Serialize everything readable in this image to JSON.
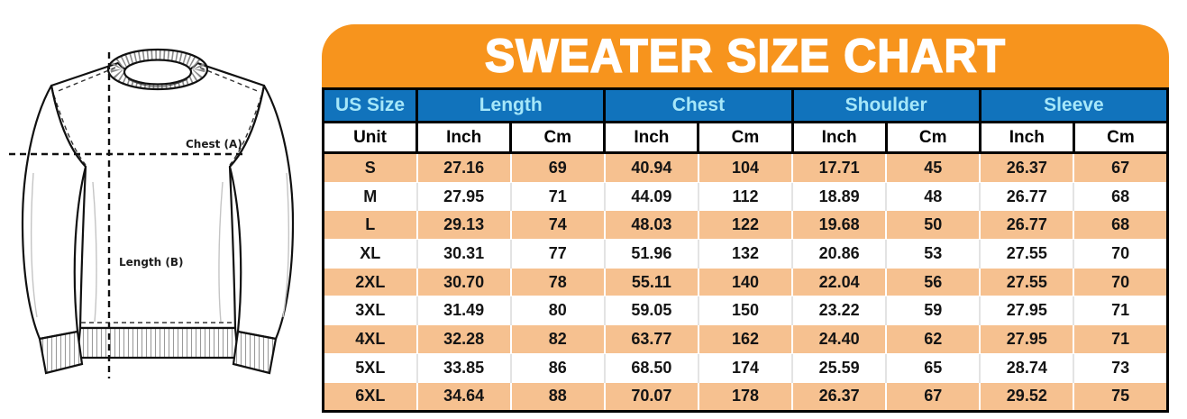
{
  "title": "SWEATER SIZE CHART",
  "diagram": {
    "chest_label": "Chest (A)",
    "length_label": "Length (B)"
  },
  "table": {
    "group_headers": [
      "US Size",
      "Length",
      "Chest",
      "Shoulder",
      "Sleeve"
    ],
    "unit_row": [
      "Unit",
      "Inch",
      "Cm",
      "Inch",
      "Cm",
      "Inch",
      "Cm",
      "Inch",
      "Cm"
    ],
    "rows": [
      {
        "size": "S",
        "values": [
          "27.16",
          "69",
          "40.94",
          "104",
          "17.71",
          "45",
          "26.37",
          "67"
        ]
      },
      {
        "size": "M",
        "values": [
          "27.95",
          "71",
          "44.09",
          "112",
          "18.89",
          "48",
          "26.77",
          "68"
        ]
      },
      {
        "size": "L",
        "values": [
          "29.13",
          "74",
          "48.03",
          "122",
          "19.68",
          "50",
          "26.77",
          "68"
        ]
      },
      {
        "size": "XL",
        "values": [
          "30.31",
          "77",
          "51.96",
          "132",
          "20.86",
          "53",
          "27.55",
          "70"
        ]
      },
      {
        "size": "2XL",
        "values": [
          "30.70",
          "78",
          "55.11",
          "140",
          "22.04",
          "56",
          "27.55",
          "70"
        ]
      },
      {
        "size": "3XL",
        "values": [
          "31.49",
          "80",
          "59.05",
          "150",
          "23.22",
          "59",
          "27.95",
          "71"
        ]
      },
      {
        "size": "4XL",
        "values": [
          "32.28",
          "82",
          "63.77",
          "162",
          "24.40",
          "62",
          "27.95",
          "71"
        ]
      },
      {
        "size": "5XL",
        "values": [
          "33.85",
          "86",
          "68.50",
          "174",
          "25.59",
          "65",
          "28.74",
          "73"
        ]
      },
      {
        "size": "6XL",
        "values": [
          "34.64",
          "88",
          "70.07",
          "178",
          "26.37",
          "67",
          "29.52",
          "75"
        ]
      }
    ]
  },
  "chart_data": {
    "type": "table",
    "title": "SWEATER SIZE CHART",
    "columns": [
      "US Size",
      "Length Inch",
      "Length Cm",
      "Chest Inch",
      "Chest Cm",
      "Shoulder Inch",
      "Shoulder Cm",
      "Sleeve Inch",
      "Sleeve Cm"
    ],
    "rows": [
      [
        "S",
        27.16,
        69,
        40.94,
        104,
        17.71,
        45,
        26.37,
        67
      ],
      [
        "M",
        27.95,
        71,
        44.09,
        112,
        18.89,
        48,
        26.77,
        68
      ],
      [
        "L",
        29.13,
        74,
        48.03,
        122,
        19.68,
        50,
        26.77,
        68
      ],
      [
        "XL",
        30.31,
        77,
        51.96,
        132,
        20.86,
        53,
        27.55,
        70
      ],
      [
        "2XL",
        30.7,
        78,
        55.11,
        140,
        22.04,
        56,
        27.55,
        70
      ],
      [
        "3XL",
        31.49,
        80,
        59.05,
        150,
        23.22,
        59,
        27.95,
        71
      ],
      [
        "4XL",
        32.28,
        82,
        63.77,
        162,
        24.4,
        62,
        27.95,
        71
      ],
      [
        "5XL",
        33.85,
        86,
        68.5,
        174,
        25.59,
        65,
        28.74,
        73
      ],
      [
        "6XL",
        34.64,
        88,
        70.07,
        178,
        26.37,
        67,
        29.52,
        75
      ]
    ]
  },
  "colors": {
    "banner_orange": "#F7941D",
    "header_blue": "#1173BC",
    "header_text_cyan": "#A6E7F9",
    "row_orange": "#F6C190",
    "row_white": "#FFFFFF",
    "border_black": "#000000"
  }
}
